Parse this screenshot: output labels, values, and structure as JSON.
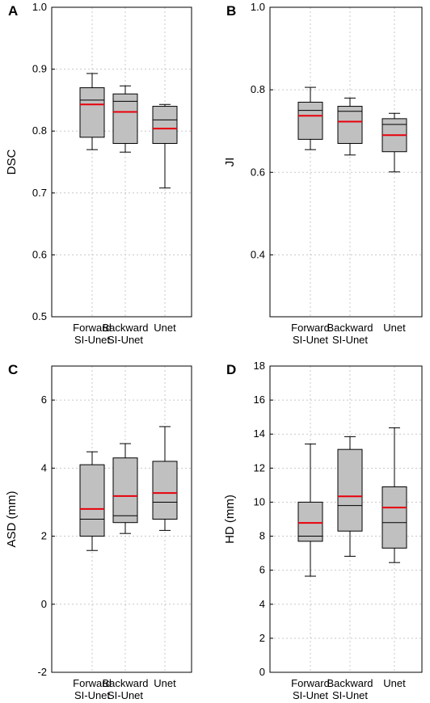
{
  "chart_data": [
    {
      "type": "box",
      "panel": "A",
      "ylabel": "DSC",
      "ylim": [
        0.5,
        1.0
      ],
      "yticks": [
        0.5,
        0.6,
        0.7,
        0.8,
        0.9,
        1.0
      ],
      "ytick_labels": [
        "0.5",
        "0.6",
        "0.7",
        "0.8",
        "0.9",
        "1.0"
      ],
      "categories": [
        [
          "Forward",
          "SI-Unet"
        ],
        [
          "Backward",
          "SI-Unet"
        ],
        [
          "Unet"
        ]
      ],
      "boxes": [
        {
          "whisker_low": 0.77,
          "q1": 0.79,
          "median": 0.85,
          "mean": 0.843,
          "q3": 0.87,
          "whisker_high": 0.893
        },
        {
          "whisker_low": 0.766,
          "q1": 0.78,
          "median": 0.848,
          "mean": 0.831,
          "q3": 0.86,
          "whisker_high": 0.873
        },
        {
          "whisker_low": 0.708,
          "q1": 0.78,
          "median": 0.818,
          "mean": 0.804,
          "q3": 0.84,
          "whisker_high": 0.843
        }
      ],
      "grid": true,
      "colors": {
        "box": "#c0c0c0",
        "mean": "#e8000b",
        "median": "#000000"
      }
    },
    {
      "type": "box",
      "panel": "B",
      "ylabel": "JI",
      "ylim": [
        0.25,
        1.0
      ],
      "yticks": [
        0.4,
        0.6,
        0.8,
        1.0
      ],
      "ytick_labels": [
        "0.4",
        "0.6",
        "0.8",
        "1.0"
      ],
      "categories": [
        [
          "Forward",
          "SI-Unet"
        ],
        [
          "Backward",
          "SI-Unet"
        ],
        [
          "Unet"
        ]
      ],
      "boxes": [
        {
          "whisker_low": 0.655,
          "q1": 0.68,
          "median": 0.75,
          "mean": 0.737,
          "q3": 0.77,
          "whisker_high": 0.806
        },
        {
          "whisker_low": 0.642,
          "q1": 0.67,
          "median": 0.748,
          "mean": 0.723,
          "q3": 0.76,
          "whisker_high": 0.78
        },
        {
          "whisker_low": 0.601,
          "q1": 0.65,
          "median": 0.716,
          "mean": 0.69,
          "q3": 0.73,
          "whisker_high": 0.743
        }
      ],
      "grid": true,
      "colors": {
        "box": "#c0c0c0",
        "mean": "#e8000b",
        "median": "#000000"
      }
    },
    {
      "type": "box",
      "panel": "C",
      "ylabel": "ASD (mm)",
      "ylim": [
        -2,
        7
      ],
      "yticks": [
        -2,
        0,
        2,
        4,
        6
      ],
      "ytick_labels": [
        "-2",
        "0",
        "2",
        "4",
        "6"
      ],
      "categories": [
        [
          "Forward",
          "SI-Unet"
        ],
        [
          "Backward",
          "SI-Unet"
        ],
        [
          "Unet"
        ]
      ],
      "boxes": [
        {
          "whisker_low": 1.58,
          "q1": 2.0,
          "median": 2.5,
          "mean": 2.8,
          "q3": 4.1,
          "whisker_high": 4.48
        },
        {
          "whisker_low": 2.08,
          "q1": 2.4,
          "median": 2.6,
          "mean": 3.18,
          "q3": 4.3,
          "whisker_high": 4.72
        },
        {
          "whisker_low": 2.17,
          "q1": 2.5,
          "median": 3.0,
          "mean": 3.27,
          "q3": 4.2,
          "whisker_high": 5.22
        }
      ],
      "grid": true,
      "colors": {
        "box": "#c0c0c0",
        "mean": "#e8000b",
        "median": "#000000"
      }
    },
    {
      "type": "box",
      "panel": "D",
      "ylabel": "HD (mm)",
      "ylim": [
        0,
        18
      ],
      "yticks": [
        0,
        2,
        4,
        6,
        8,
        10,
        12,
        14,
        16,
        18
      ],
      "ytick_labels": [
        "0",
        "2",
        "4",
        "6",
        "8",
        "10",
        "12",
        "14",
        "16",
        "18"
      ],
      "categories": [
        [
          "Forward",
          "SI-Unet"
        ],
        [
          "Backward",
          "SI-Unet"
        ],
        [
          "Unet"
        ]
      ],
      "boxes": [
        {
          "whisker_low": 5.65,
          "q1": 7.7,
          "median": 8.0,
          "mean": 8.78,
          "q3": 10.0,
          "whisker_high": 13.42
        },
        {
          "whisker_low": 6.82,
          "q1": 8.3,
          "median": 9.8,
          "mean": 10.34,
          "q3": 13.1,
          "whisker_high": 13.85
        },
        {
          "whisker_low": 6.45,
          "q1": 7.3,
          "median": 8.8,
          "mean": 9.68,
          "q3": 10.9,
          "whisker_high": 14.37
        }
      ],
      "grid": true,
      "colors": {
        "box": "#c0c0c0",
        "mean": "#e8000b",
        "median": "#000000"
      }
    }
  ]
}
